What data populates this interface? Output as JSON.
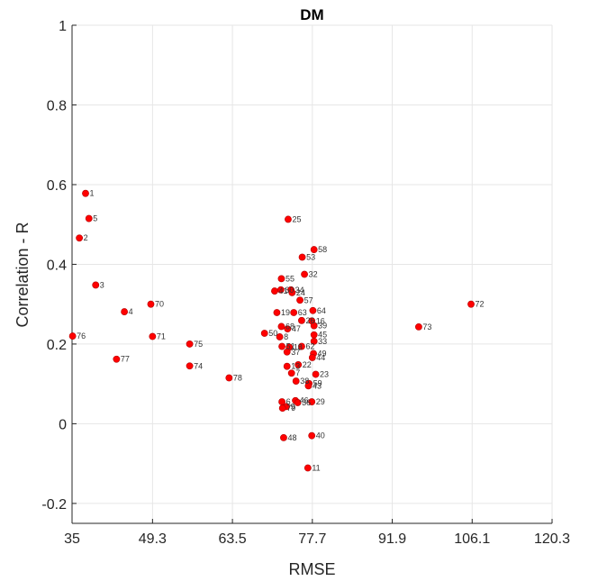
{
  "chart_data": {
    "type": "scatter",
    "title": "DM",
    "xlabel": "RMSE",
    "ylabel": "Correlation - R",
    "xlim": [
      35,
      120.3
    ],
    "ylim": [
      -0.25,
      1
    ],
    "xticks": [
      35,
      49.3,
      63.5,
      77.7,
      91.9,
      106.1,
      120.3
    ],
    "xtick_labels": [
      "35",
      "49.3",
      "63.5",
      "77.7",
      "91.9",
      "106.1",
      "120.3"
    ],
    "yticks": [
      -0.2,
      0,
      0.2,
      0.4,
      0.6,
      0.8,
      1
    ],
    "ytick_labels": [
      "-0.2",
      "0",
      "0.2",
      "0.4",
      "0.6",
      "0.8",
      "1"
    ],
    "grid": true,
    "colors": {
      "marker": "#ff0000",
      "marker_edge": "#b30000",
      "grid": "#e6e6e6",
      "axis": "#262626"
    },
    "points": [
      {
        "label": "1",
        "x": 37.4,
        "y": 0.578
      },
      {
        "label": "5",
        "x": 38.0,
        "y": 0.515
      },
      {
        "label": "2",
        "x": 36.3,
        "y": 0.466
      },
      {
        "label": "3",
        "x": 39.2,
        "y": 0.348
      },
      {
        "label": "4",
        "x": 44.3,
        "y": 0.281
      },
      {
        "label": "70",
        "x": 49.0,
        "y": 0.3
      },
      {
        "label": "71",
        "x": 49.3,
        "y": 0.219
      },
      {
        "label": "76",
        "x": 35.1,
        "y": 0.22
      },
      {
        "label": "77",
        "x": 42.9,
        "y": 0.162
      },
      {
        "label": "75",
        "x": 55.9,
        "y": 0.2
      },
      {
        "label": "74",
        "x": 55.9,
        "y": 0.145
      },
      {
        "label": "78",
        "x": 62.9,
        "y": 0.115
      },
      {
        "label": "50",
        "x": 69.2,
        "y": 0.227
      },
      {
        "label": "25",
        "x": 73.4,
        "y": 0.513
      },
      {
        "label": "58",
        "x": 78.0,
        "y": 0.437
      },
      {
        "label": "53",
        "x": 75.9,
        "y": 0.418
      },
      {
        "label": "32",
        "x": 76.3,
        "y": 0.375
      },
      {
        "label": "55",
        "x": 72.2,
        "y": 0.364
      },
      {
        "label": "60",
        "x": 72.1,
        "y": 0.336
      },
      {
        "label": "34",
        "x": 73.9,
        "y": 0.336
      },
      {
        "label": "41",
        "x": 71.0,
        "y": 0.333
      },
      {
        "label": "24",
        "x": 74.1,
        "y": 0.329
      },
      {
        "label": "57",
        "x": 75.5,
        "y": 0.31
      },
      {
        "label": "64",
        "x": 77.8,
        "y": 0.284
      },
      {
        "label": "19",
        "x": 71.4,
        "y": 0.279
      },
      {
        "label": "63",
        "x": 74.4,
        "y": 0.279
      },
      {
        "label": "26",
        "x": 75.8,
        "y": 0.259
      },
      {
        "label": "16",
        "x": 77.6,
        "y": 0.258
      },
      {
        "label": "39",
        "x": 78.0,
        "y": 0.246
      },
      {
        "label": "68",
        "x": 72.2,
        "y": 0.244
      },
      {
        "label": "47",
        "x": 73.3,
        "y": 0.238
      },
      {
        "label": "45",
        "x": 78.0,
        "y": 0.223
      },
      {
        "label": "8",
        "x": 71.9,
        "y": 0.218
      },
      {
        "label": "33",
        "x": 78.0,
        "y": 0.207
      },
      {
        "label": "51",
        "x": 72.3,
        "y": 0.194
      },
      {
        "label": "18",
        "x": 73.6,
        "y": 0.192
      },
      {
        "label": "62",
        "x": 75.8,
        "y": 0.194
      },
      {
        "label": "37",
        "x": 73.2,
        "y": 0.18
      },
      {
        "label": "49",
        "x": 77.9,
        "y": 0.176
      },
      {
        "label": "44",
        "x": 77.7,
        "y": 0.166
      },
      {
        "label": "22",
        "x": 75.2,
        "y": 0.148
      },
      {
        "label": "13",
        "x": 73.2,
        "y": 0.144
      },
      {
        "label": "7",
        "x": 74.0,
        "y": 0.127
      },
      {
        "label": "23",
        "x": 78.3,
        "y": 0.124
      },
      {
        "label": "38",
        "x": 74.8,
        "y": 0.107
      },
      {
        "label": "59",
        "x": 77.1,
        "y": 0.101
      },
      {
        "label": "43",
        "x": 77.0,
        "y": 0.095
      },
      {
        "label": "6",
        "x": 72.3,
        "y": 0.055
      },
      {
        "label": "46",
        "x": 74.7,
        "y": 0.058
      },
      {
        "label": "36",
        "x": 75.1,
        "y": 0.053
      },
      {
        "label": "29",
        "x": 77.6,
        "y": 0.055
      },
      {
        "label": "9",
        "x": 73.1,
        "y": 0.043
      },
      {
        "label": "79",
        "x": 72.4,
        "y": 0.039
      },
      {
        "label": "40",
        "x": 77.6,
        "y": -0.03
      },
      {
        "label": "48",
        "x": 72.6,
        "y": -0.035
      },
      {
        "label": "11",
        "x": 76.9,
        "y": -0.111
      },
      {
        "label": "72",
        "x": 105.9,
        "y": 0.3
      },
      {
        "label": "73",
        "x": 96.6,
        "y": 0.243
      }
    ]
  }
}
